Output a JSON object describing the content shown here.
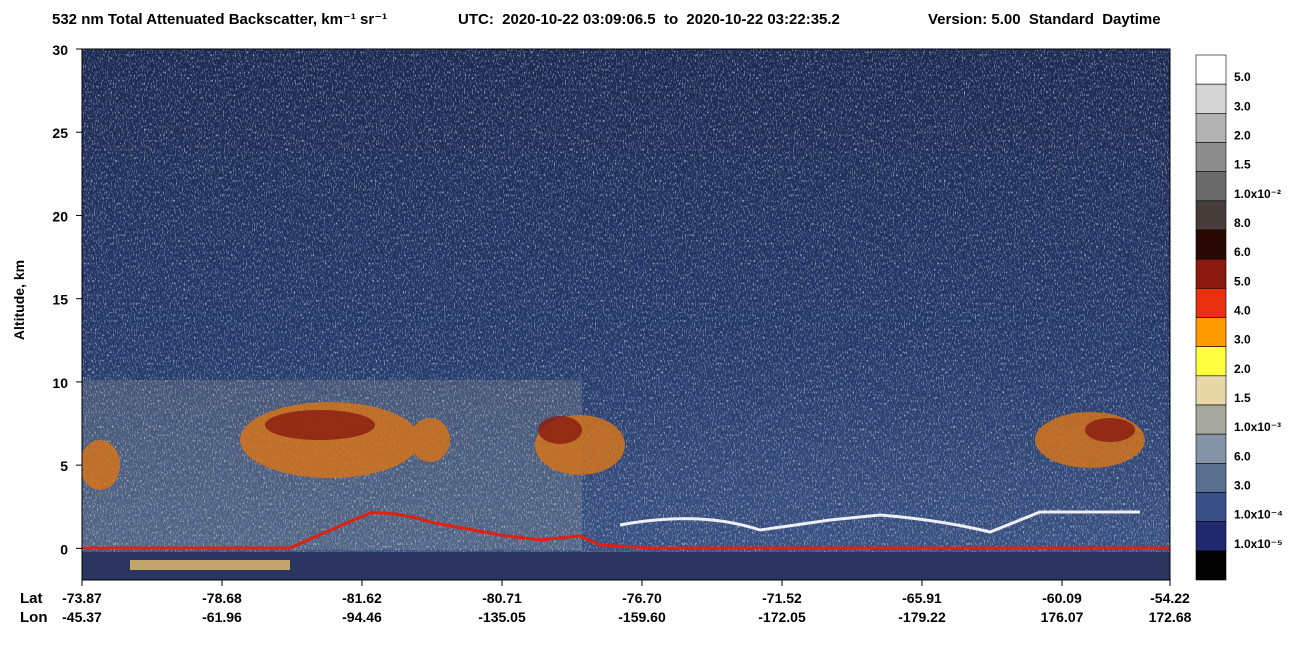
{
  "chart_data": {
    "type": "heatmap",
    "title": "532 nm Total Attenuated Backscatter, km⁻¹ sr⁻¹",
    "subtitle": "UTC:  2020-10-22 03:09:06.5  to  2020-10-22 03:22:35.2",
    "version": "Version: 5.00  Standard  Daytime",
    "y_label": "Altitude, km",
    "ylim": [
      -1.9,
      30
    ],
    "yticks": [
      0,
      5,
      10,
      15,
      20,
      25,
      30
    ],
    "x_row_labels": [
      "Lat",
      "Lon"
    ],
    "lat": [
      "-73.87",
      "-78.68",
      "-81.62",
      "-80.71",
      "-76.70",
      "-71.52",
      "-65.91",
      "-60.09",
      "-54.22"
    ],
    "lon": [
      "-45.37",
      "-61.96",
      "-94.46",
      "-135.05",
      "-159.60",
      "-172.05",
      "-179.22",
      "176.07",
      "172.68"
    ],
    "colorbar": {
      "colors": [
        "#ffffff",
        "#d6d6d6",
        "#b2b2b2",
        "#8e8e8e",
        "#6a6a6a",
        "#473d3a",
        "#2a0806",
        "#8a1a10",
        "#e8300e",
        "#ff9a00",
        "#ffff40",
        "#e8d8a8",
        "#a6a8a0",
        "#8494a6",
        "#5a7090",
        "#3a5088",
        "#22286e",
        "#000000"
      ],
      "labels": [
        "5.0",
        "3.0",
        "2.0",
        "1.5",
        "1.0x10⁻²",
        "8.0",
        "6.0",
        "5.0",
        "4.0",
        "3.0",
        "2.0",
        "1.5",
        "1.0x10⁻³",
        "6.0",
        "3.0",
        "1.0x10⁻⁴",
        "1.0x10⁻⁵"
      ]
    }
  }
}
